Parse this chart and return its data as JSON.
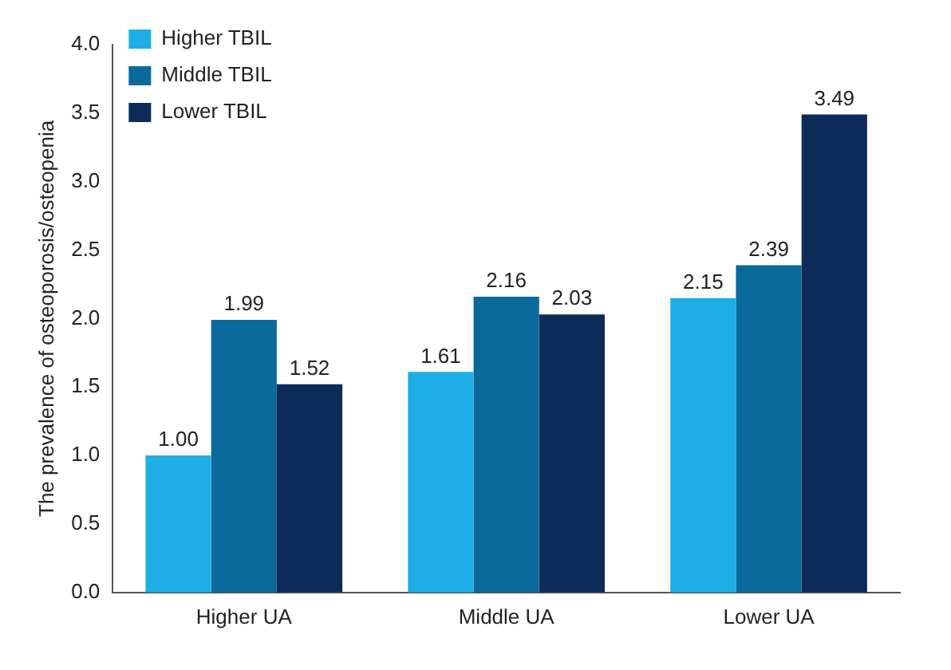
{
  "chart_data": {
    "type": "bar",
    "ylabel": "The prevalence of osteoporosis/osteopenia",
    "categories": [
      "Higher UA",
      "Middle UA",
      "Lower UA"
    ],
    "series": [
      {
        "name": "Higher TBIL",
        "color": "#1eaee6",
        "values": [
          1.0,
          1.61,
          2.15
        ],
        "value_labels": [
          "1.00",
          "1.61",
          "2.15"
        ]
      },
      {
        "name": "Middle TBIL",
        "color": "#0b6a9c",
        "values": [
          1.99,
          2.16,
          2.39
        ],
        "value_labels": [
          "1.99",
          "2.16",
          "2.39"
        ]
      },
      {
        "name": "Lower TBIL",
        "color": "#0c2b58",
        "values": [
          1.52,
          2.03,
          3.49
        ],
        "value_labels": [
          "1.52",
          "2.03",
          "3.49"
        ]
      }
    ],
    "ylim": [
      0,
      4
    ],
    "yticks": [
      {
        "value": 0,
        "label": "0.0"
      },
      {
        "value": 0.5,
        "label": "0.5"
      },
      {
        "value": 1,
        "label": "1.0"
      },
      {
        "value": 1.5,
        "label": "1.5"
      },
      {
        "value": 2,
        "label": "2.0"
      },
      {
        "value": 2.5,
        "label": "2.5"
      },
      {
        "value": 3,
        "label": "3.0"
      },
      {
        "value": 3.5,
        "label": "3.5"
      },
      {
        "value": 4,
        "label": "4.0"
      }
    ],
    "grid": false,
    "legend": "top left"
  }
}
